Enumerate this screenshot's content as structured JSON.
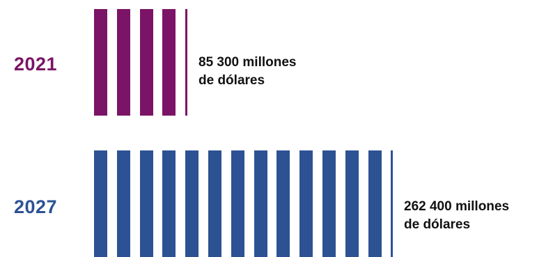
{
  "chart_data": {
    "type": "bar",
    "title": "",
    "xlabel": "",
    "ylabel": "",
    "unit": "millones de dólares",
    "categories": [
      "2021",
      "2027"
    ],
    "values": [
      85300,
      262400
    ],
    "rows": [
      {
        "year": "2021",
        "value": 85300,
        "amount_line1": "85 300 millones",
        "amount_line2": "de dólares",
        "color": "#7b1466"
      },
      {
        "year": "2027",
        "value": 262400,
        "amount_line1": "262 400 millones",
        "amount_line2": "de dólares",
        "color": "#2d5294"
      }
    ],
    "unit_per_stripe": 20000
  }
}
